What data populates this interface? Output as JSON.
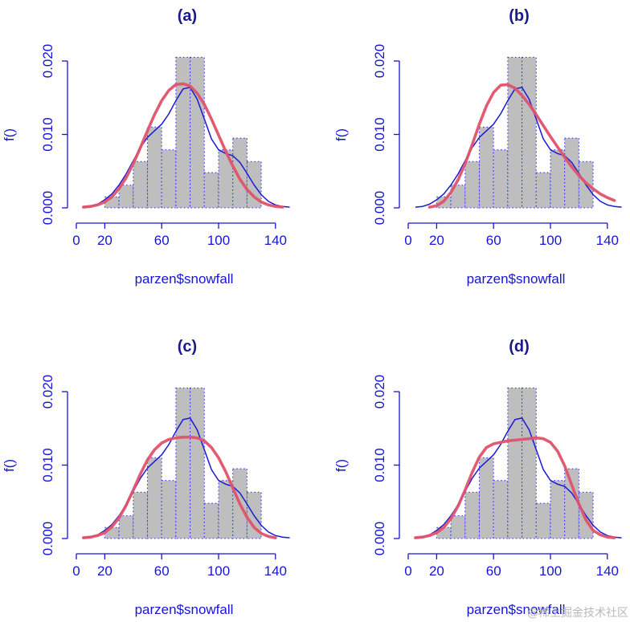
{
  "figure": {
    "watermark": "@稀土掘金技术社区"
  },
  "chart_data": [
    {
      "type": "bar",
      "title": "(a)",
      "xlabel": "parzen$snowfall",
      "ylabel": "f()",
      "xlim": [
        0,
        150
      ],
      "ylim": [
        0,
        0.021
      ],
      "x_ticks": [
        0,
        20,
        60,
        100,
        140
      ],
      "x_tick_labels": [
        "0",
        "20",
        "60",
        "100",
        "140"
      ],
      "y_ticks": [
        0,
        0.01,
        0.02
      ],
      "y_tick_labels": [
        "0.000",
        "0.010",
        "0.020"
      ],
      "histogram": {
        "bin_edges": [
          20,
          30,
          40,
          50,
          60,
          70,
          80,
          90,
          100,
          110,
          120,
          130
        ],
        "density": [
          0.0015,
          0.0031,
          0.0063,
          0.011,
          0.0079,
          0.0205,
          0.0205,
          0.0048,
          0.0079,
          0.0095,
          0.0063
        ]
      },
      "series": [
        {
          "color": "#1a1ad6",
          "x": [
            5,
            10,
            15,
            20,
            25,
            30,
            35,
            40,
            45,
            50,
            55,
            60,
            65,
            70,
            75,
            80,
            85,
            90,
            95,
            100,
            105,
            110,
            115,
            120,
            125,
            130,
            135,
            140,
            145,
            150
          ],
          "y": [
            0.0001,
            0.0002,
            0.0005,
            0.0011,
            0.0019,
            0.0031,
            0.0046,
            0.0064,
            0.0082,
            0.0096,
            0.0105,
            0.0114,
            0.0128,
            0.0146,
            0.0162,
            0.0164,
            0.0148,
            0.0121,
            0.0094,
            0.0079,
            0.0074,
            0.0071,
            0.0062,
            0.0047,
            0.0031,
            0.0018,
            0.0009,
            0.0004,
            0.0002,
            0.0001
          ]
        },
        {
          "color": "#df536b",
          "x": [
            5,
            10,
            15,
            20,
            25,
            30,
            35,
            40,
            45,
            50,
            55,
            60,
            65,
            70,
            75,
            80,
            85,
            90,
            95,
            100,
            105,
            110,
            115,
            120,
            125,
            130,
            135,
            140,
            145
          ],
          "y": [
            0.0001,
            0.0002,
            0.0004,
            0.0008,
            0.0015,
            0.0026,
            0.0041,
            0.006,
            0.0082,
            0.0105,
            0.0127,
            0.0146,
            0.016,
            0.0168,
            0.0169,
            0.0166,
            0.0156,
            0.0141,
            0.0121,
            0.0099,
            0.0077,
            0.0057,
            0.0039,
            0.0025,
            0.0015,
            0.0008,
            0.0004,
            0.0002,
            0.0001
          ]
        }
      ]
    },
    {
      "type": "bar",
      "title": "(b)",
      "xlabel": "parzen$snowfall",
      "ylabel": "f()",
      "xlim": [
        0,
        150
      ],
      "ylim": [
        0,
        0.021
      ],
      "x_ticks": [
        0,
        20,
        60,
        100,
        140
      ],
      "x_tick_labels": [
        "0",
        "20",
        "60",
        "100",
        "140"
      ],
      "y_ticks": [
        0,
        0.01,
        0.02
      ],
      "y_tick_labels": [
        "0.000",
        "0.010",
        "0.020"
      ],
      "histogram": {
        "bin_edges": [
          20,
          30,
          40,
          50,
          60,
          70,
          80,
          90,
          100,
          110,
          120,
          130
        ],
        "density": [
          0.0015,
          0.0031,
          0.0063,
          0.011,
          0.0079,
          0.0205,
          0.0205,
          0.0048,
          0.0079,
          0.0095,
          0.0063
        ]
      },
      "series": [
        {
          "color": "#1a1ad6",
          "x": [
            5,
            10,
            15,
            20,
            25,
            30,
            35,
            40,
            45,
            50,
            55,
            60,
            65,
            70,
            75,
            80,
            85,
            90,
            95,
            100,
            105,
            110,
            115,
            120,
            125,
            130,
            135,
            140,
            145,
            150
          ],
          "y": [
            0.0001,
            0.0002,
            0.0005,
            0.0011,
            0.0019,
            0.0031,
            0.0046,
            0.0064,
            0.0082,
            0.0096,
            0.0105,
            0.0114,
            0.0128,
            0.0146,
            0.0162,
            0.0164,
            0.0148,
            0.0121,
            0.0094,
            0.0079,
            0.0074,
            0.0071,
            0.0062,
            0.0047,
            0.0031,
            0.0018,
            0.0009,
            0.0004,
            0.0002,
            0.0001
          ]
        },
        {
          "color": "#df536b",
          "x": [
            15,
            20,
            25,
            30,
            35,
            40,
            45,
            50,
            55,
            60,
            65,
            70,
            75,
            80,
            85,
            90,
            95,
            100,
            105,
            110,
            115,
            120,
            125,
            130,
            135,
            140,
            145
          ],
          "y": [
            0.0001,
            0.0003,
            0.0009,
            0.0021,
            0.0038,
            0.006,
            0.0086,
            0.0114,
            0.0139,
            0.0157,
            0.0167,
            0.0168,
            0.0163,
            0.0153,
            0.0141,
            0.0127,
            0.0112,
            0.0097,
            0.0083,
            0.0069,
            0.0056,
            0.0044,
            0.0034,
            0.0026,
            0.0019,
            0.0014,
            0.001
          ]
        }
      ]
    },
    {
      "type": "bar",
      "title": "(c)",
      "xlabel": "parzen$snowfall",
      "ylabel": "f()",
      "xlim": [
        0,
        150
      ],
      "ylim": [
        0,
        0.021
      ],
      "x_ticks": [
        0,
        20,
        60,
        100,
        140
      ],
      "x_tick_labels": [
        "0",
        "20",
        "60",
        "100",
        "140"
      ],
      "y_ticks": [
        0,
        0.01,
        0.02
      ],
      "y_tick_labels": [
        "0.000",
        "0.010",
        "0.020"
      ],
      "histogram": {
        "bin_edges": [
          20,
          30,
          40,
          50,
          60,
          70,
          80,
          90,
          100,
          110,
          120,
          130
        ],
        "density": [
          0.0015,
          0.0031,
          0.0063,
          0.011,
          0.0079,
          0.0205,
          0.0205,
          0.0048,
          0.0079,
          0.0095,
          0.0063
        ]
      },
      "series": [
        {
          "color": "#1a1ad6",
          "x": [
            5,
            10,
            15,
            20,
            25,
            30,
            35,
            40,
            45,
            50,
            55,
            60,
            65,
            70,
            75,
            80,
            85,
            90,
            95,
            100,
            105,
            110,
            115,
            120,
            125,
            130,
            135,
            140,
            145,
            150
          ],
          "y": [
            0.0001,
            0.0002,
            0.0005,
            0.0011,
            0.0019,
            0.0031,
            0.0046,
            0.0064,
            0.0082,
            0.0096,
            0.0105,
            0.0114,
            0.0128,
            0.0146,
            0.0162,
            0.0164,
            0.0148,
            0.0121,
            0.0094,
            0.0079,
            0.0074,
            0.0071,
            0.0062,
            0.0047,
            0.0031,
            0.0018,
            0.0009,
            0.0004,
            0.0002,
            0.0001
          ]
        },
        {
          "color": "#df536b",
          "x": [
            5,
            10,
            15,
            20,
            25,
            30,
            35,
            40,
            45,
            50,
            55,
            60,
            65,
            70,
            75,
            80,
            85,
            90,
            95,
            100,
            105,
            110,
            115,
            120,
            125,
            130,
            135,
            140
          ],
          "y": [
            0.0001,
            0.0002,
            0.0004,
            0.0008,
            0.0016,
            0.0028,
            0.0045,
            0.0066,
            0.0088,
            0.0107,
            0.0121,
            0.013,
            0.0135,
            0.0137,
            0.0138,
            0.0138,
            0.0137,
            0.0133,
            0.0124,
            0.011,
            0.0091,
            0.0069,
            0.0047,
            0.0029,
            0.0015,
            0.0007,
            0.0003,
            0.0001
          ]
        }
      ]
    },
    {
      "type": "bar",
      "title": "(d)",
      "xlabel": "parzen$snowfall",
      "ylabel": "f()",
      "xlim": [
        0,
        150
      ],
      "ylim": [
        0,
        0.021
      ],
      "x_ticks": [
        0,
        20,
        60,
        100,
        140
      ],
      "x_tick_labels": [
        "0",
        "20",
        "60",
        "100",
        "140"
      ],
      "y_ticks": [
        0,
        0.01,
        0.02
      ],
      "y_tick_labels": [
        "0.000",
        "0.010",
        "0.020"
      ],
      "histogram": {
        "bin_edges": [
          20,
          30,
          40,
          50,
          60,
          70,
          80,
          90,
          100,
          110,
          120,
          130
        ],
        "density": [
          0.0015,
          0.0031,
          0.0063,
          0.011,
          0.0079,
          0.0205,
          0.0205,
          0.0048,
          0.0079,
          0.0095,
          0.0063
        ]
      },
      "series": [
        {
          "color": "#1a1ad6",
          "x": [
            5,
            10,
            15,
            20,
            25,
            30,
            35,
            40,
            45,
            50,
            55,
            60,
            65,
            70,
            75,
            80,
            85,
            90,
            95,
            100,
            105,
            110,
            115,
            120,
            125,
            130,
            135,
            140,
            145,
            150
          ],
          "y": [
            0.0001,
            0.0002,
            0.0005,
            0.0011,
            0.0019,
            0.0031,
            0.0046,
            0.0064,
            0.0082,
            0.0096,
            0.0105,
            0.0114,
            0.0128,
            0.0146,
            0.0162,
            0.0164,
            0.0148,
            0.0121,
            0.0094,
            0.0079,
            0.0074,
            0.0071,
            0.0062,
            0.0047,
            0.0031,
            0.0018,
            0.0009,
            0.0004,
            0.0002,
            0.0001
          ]
        },
        {
          "color": "#df536b",
          "x": [
            5,
            10,
            15,
            20,
            25,
            30,
            35,
            40,
            45,
            50,
            55,
            60,
            65,
            70,
            75,
            80,
            85,
            90,
            95,
            100,
            105,
            110,
            115,
            120,
            125,
            130,
            135,
            140,
            145
          ],
          "y": [
            0.0001,
            0.0002,
            0.0004,
            0.0008,
            0.0015,
            0.0027,
            0.0044,
            0.0066,
            0.009,
            0.0111,
            0.0124,
            0.0129,
            0.0131,
            0.0133,
            0.0134,
            0.0135,
            0.0136,
            0.0137,
            0.0136,
            0.0131,
            0.0119,
            0.0099,
            0.0073,
            0.0047,
            0.0025,
            0.0011,
            0.0005,
            0.0002,
            0.0001
          ]
        }
      ]
    }
  ]
}
